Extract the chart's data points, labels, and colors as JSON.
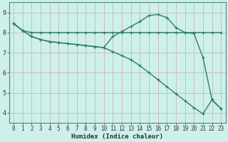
{
  "xlabel": "Humidex (Indice chaleur)",
  "background_color": "#cef0ea",
  "grid_color": "#c8b8b8",
  "line_color": "#2d7d6e",
  "spine_color": "#4a8a7a",
  "xlim": [
    -0.5,
    23.5
  ],
  "ylim": [
    3.5,
    9.5
  ],
  "yticks": [
    4,
    5,
    6,
    7,
    8,
    9
  ],
  "xticks": [
    0,
    1,
    2,
    3,
    4,
    5,
    6,
    7,
    8,
    9,
    10,
    11,
    12,
    13,
    14,
    15,
    16,
    17,
    18,
    19,
    20,
    21,
    22,
    23
  ],
  "line1_x": [
    0,
    1,
    2,
    3,
    4,
    5,
    6,
    7,
    8,
    9,
    10,
    11,
    12,
    13,
    14,
    15,
    16,
    17,
    18,
    19,
    20,
    21,
    22,
    23
  ],
  "line1_y": [
    8.45,
    8.1,
    8.0,
    8.0,
    8.0,
    8.0,
    8.0,
    8.0,
    8.0,
    8.0,
    8.0,
    8.0,
    8.0,
    8.0,
    8.0,
    8.0,
    8.0,
    8.0,
    8.0,
    8.0,
    8.0,
    8.0,
    8.0,
    8.0
  ],
  "line2_x": [
    0,
    1,
    2,
    3,
    4,
    5,
    6,
    7,
    8,
    9,
    10,
    11,
    12,
    13,
    14,
    15,
    16,
    17,
    18,
    19,
    20,
    21,
    22,
    23
  ],
  "line2_y": [
    8.45,
    8.1,
    7.8,
    7.65,
    7.55,
    7.5,
    7.45,
    7.4,
    7.35,
    7.3,
    7.25,
    7.8,
    8.05,
    8.3,
    8.55,
    8.85,
    8.9,
    8.75,
    8.25,
    8.0,
    7.95,
    6.75,
    4.65,
    4.2
  ],
  "line3_x": [
    0,
    1,
    2,
    3,
    4,
    5,
    6,
    7,
    8,
    9,
    10,
    11,
    12,
    13,
    14,
    15,
    16,
    17,
    18,
    19,
    20,
    21,
    22,
    23
  ],
  "line3_y": [
    8.45,
    8.1,
    7.8,
    7.65,
    7.55,
    7.5,
    7.45,
    7.4,
    7.35,
    7.3,
    7.25,
    7.05,
    6.85,
    6.65,
    6.35,
    6.0,
    5.65,
    5.3,
    4.95,
    4.6,
    4.25,
    3.95,
    4.65,
    4.2
  ],
  "marker_size": 3.5,
  "line_width": 1.0,
  "tick_fontsize": 5.5,
  "xlabel_fontsize": 6.5
}
